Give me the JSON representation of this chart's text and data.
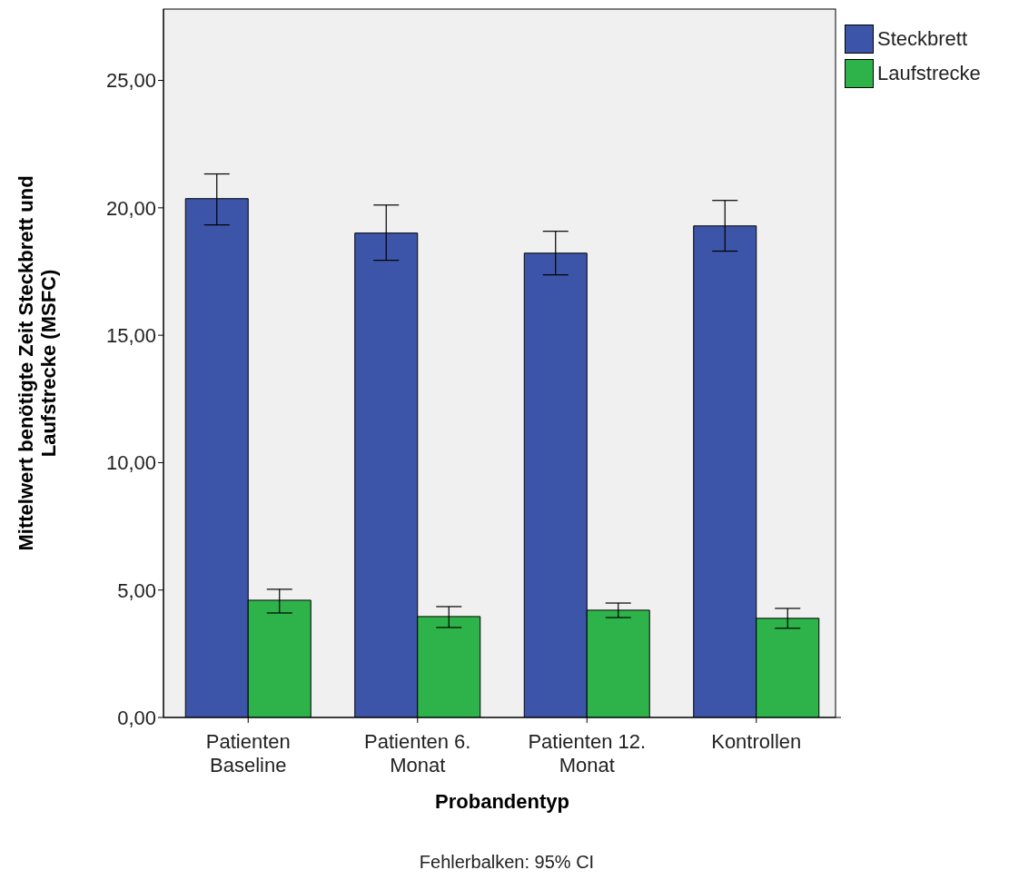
{
  "chart_data": {
    "type": "bar",
    "xlabel": "Probandentyp",
    "ylabel": "Mittelwert benötigte Zeit Steckbrett und Laufstrecke (MSFC)",
    "annotations": [
      "Fehlerbalken: 95% CI"
    ],
    "categories": [
      "Patienten Baseline",
      "Patienten 6. Monat",
      "Patienten 12. Monat",
      "Kontrollen"
    ],
    "series": [
      {
        "name": "Steckbrett",
        "color": "#3c55a8",
        "values": [
          20.36,
          19.01,
          18.22,
          19.29
        ],
        "errors": [
          [
            19.33,
            21.33
          ],
          [
            17.94,
            20.11
          ],
          [
            17.37,
            19.08
          ],
          [
            18.3,
            20.29
          ]
        ]
      },
      {
        "name": "Laufstrecke",
        "color": "#2db34a",
        "values": [
          4.6,
          3.96,
          4.21,
          3.89
        ],
        "errors": [
          [
            4.1,
            5.03
          ],
          [
            3.53,
            4.35
          ],
          [
            3.92,
            4.49
          ],
          [
            3.5,
            4.28
          ]
        ]
      }
    ],
    "ylim": [
      0,
      27.8
    ],
    "yticks": [
      {
        "value": 0,
        "label": "0,00"
      },
      {
        "value": 5,
        "label": "5,00"
      },
      {
        "value": 10,
        "label": "10,00"
      },
      {
        "value": 15,
        "label": "15,00"
      },
      {
        "value": 20,
        "label": "20,00"
      },
      {
        "value": 25,
        "label": "25,00"
      }
    ],
    "grid": false,
    "legend": "top right"
  }
}
